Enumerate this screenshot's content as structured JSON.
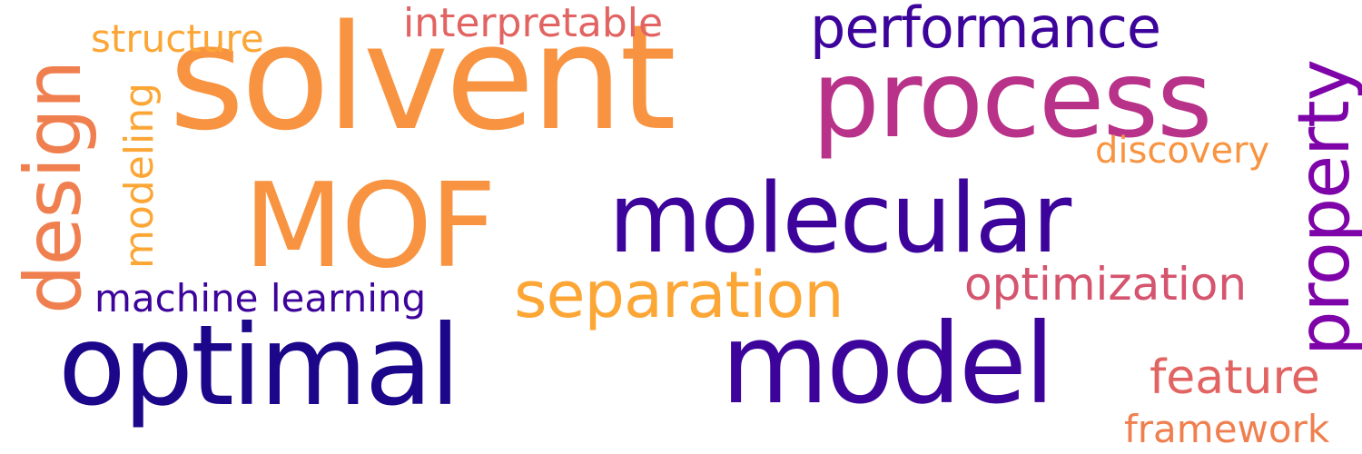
{
  "words": {
    "solvent": "solvent",
    "process": "process",
    "mof": "MOF",
    "molecular": "molecular",
    "optimal": "optimal",
    "model": "model",
    "separation": "separation",
    "performance": "performance",
    "interpretable": "interpretable",
    "structure": "structure",
    "discovery": "discovery",
    "optimization": "optimization",
    "machine_learning": "machine learning",
    "feature": "feature",
    "framework": "framework",
    "design": "design",
    "modeling": "modeling",
    "property": "property"
  },
  "colors": {
    "orange": "#f89441",
    "magenta": "#b83289",
    "indigo": "#3d049b",
    "dark_indigo": "#1c068a",
    "yellow_orange": "#fca636",
    "salmon": "#e16462",
    "rose": "#d5546e",
    "coral": "#f07f4f",
    "purple": "#7e03a8"
  }
}
